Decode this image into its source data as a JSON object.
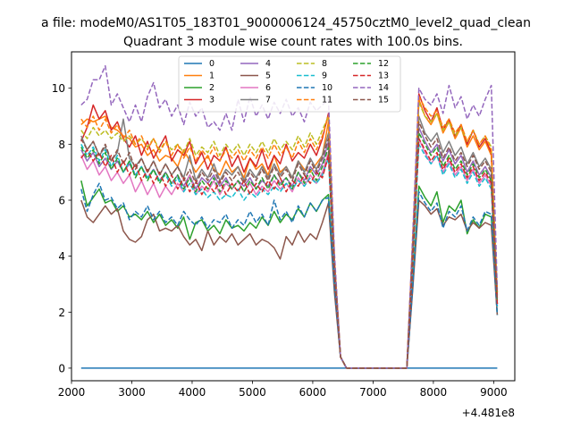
{
  "chart_data": {
    "type": "line",
    "suptitle": "a file: modeM0/AS1T05_183T01_9000006124_45750cztM0_level2_quad_clean",
    "title": "Quadrant 3 module wise count rates with 100.0s bins.",
    "xlabel": "",
    "ylabel": "",
    "offset_text": "+4.481e8",
    "xlim": [
      2000,
      9350
    ],
    "ylim": [
      -0.45,
      11.3
    ],
    "x_ticks": [
      2000,
      3000,
      4000,
      5000,
      6000,
      7000,
      8000,
      9000
    ],
    "y_ticks": [
      0,
      2,
      4,
      6,
      8,
      10
    ],
    "legend_position": "top-center",
    "legend_columns": 4,
    "grid": false,
    "x": [
      2160,
      2260,
      2360,
      2460,
      2560,
      2660,
      2760,
      2860,
      2960,
      3060,
      3160,
      3260,
      3360,
      3460,
      3560,
      3660,
      3760,
      3860,
      3960,
      4060,
      4160,
      4260,
      4360,
      4460,
      4560,
      4660,
      4760,
      4860,
      4960,
      5060,
      5160,
      5260,
      5360,
      5460,
      5560,
      5660,
      5760,
      5860,
      5960,
      6060,
      6160,
      6260,
      6360,
      6460,
      6560,
      6660,
      6760,
      6860,
      6960,
      7060,
      7160,
      7260,
      7360,
      7460,
      7560,
      7660,
      7760,
      7860,
      7960,
      8060,
      8160,
      8260,
      8360,
      8460,
      8560,
      8660,
      8760,
      8860,
      8960,
      9060
    ],
    "series": [
      {
        "name": "0",
        "color": "#1f77b4",
        "dash": "solid",
        "values": [
          0,
          0,
          0,
          0,
          0,
          0,
          0,
          0,
          0,
          0,
          0,
          0,
          0,
          0,
          0,
          0,
          0,
          0,
          0,
          0,
          0,
          0,
          0,
          0,
          0,
          0,
          0,
          0,
          0,
          0,
          0,
          0,
          0,
          0,
          0,
          0,
          0,
          0,
          0,
          0,
          0,
          0,
          0,
          0,
          0,
          0,
          0,
          0,
          0,
          0,
          0,
          0,
          0,
          0,
          0,
          0,
          0,
          0,
          0,
          0,
          0,
          0,
          0,
          0,
          0,
          0,
          0,
          0,
          0,
          0
        ]
      },
      {
        "name": "1",
        "color": "#ff7f0e",
        "dash": "solid",
        "values": [
          8.7,
          8.9,
          8.8,
          8.9,
          9.0,
          8.6,
          8.5,
          8.3,
          8.2,
          7.9,
          8.0,
          7.6,
          7.8,
          7.4,
          7.6,
          7.5,
          7.2,
          7.8,
          7.4,
          7.0,
          7.3,
          7.6,
          7.1,
          6.9,
          7.4,
          7.0,
          7.2,
          6.8,
          7.5,
          7.1,
          7.3,
          6.9,
          7.6,
          7.0,
          7.2,
          6.8,
          7.4,
          7.1,
          7.0,
          7.3,
          7.6,
          8.8,
          3.8,
          0.4,
          0,
          0,
          0,
          0,
          0,
          0,
          0,
          0,
          0,
          0,
          0,
          4.6,
          9.6,
          9.0,
          8.7,
          9.1,
          8.4,
          8.8,
          8.2,
          8.6,
          7.9,
          8.3,
          7.8,
          8.1,
          7.6,
          2.5
        ]
      },
      {
        "name": "2",
        "color": "#2ca02c",
        "dash": "solid",
        "values": [
          6.7,
          5.8,
          6.1,
          6.4,
          5.9,
          6.0,
          5.6,
          5.8,
          5.4,
          5.5,
          5.3,
          5.6,
          5.2,
          5.5,
          5.1,
          5.3,
          5.0,
          5.4,
          4.6,
          5.2,
          5.3,
          4.9,
          5.1,
          4.8,
          5.3,
          5.0,
          5.1,
          4.9,
          5.2,
          5.0,
          5.4,
          5.1,
          5.6,
          5.2,
          5.5,
          5.3,
          5.7,
          5.4,
          5.9,
          5.6,
          6.0,
          6.2,
          3.0,
          0.4,
          0,
          0,
          0,
          0,
          0,
          0,
          0,
          0,
          0,
          0,
          0,
          3.1,
          6.5,
          6.1,
          5.8,
          6.3,
          5.2,
          5.8,
          5.6,
          6.0,
          4.8,
          5.3,
          5.0,
          5.5,
          5.4,
          1.9
        ]
      },
      {
        "name": "3",
        "color": "#d62728",
        "dash": "solid",
        "values": [
          8.1,
          8.6,
          9.4,
          8.9,
          9.2,
          8.5,
          8.8,
          8.2,
          7.9,
          8.3,
          7.6,
          8.1,
          7.5,
          7.9,
          8.3,
          7.4,
          7.8,
          7.6,
          8.1,
          7.3,
          7.7,
          7.1,
          7.6,
          7.4,
          7.9,
          7.2,
          7.6,
          7.0,
          7.5,
          7.2,
          7.8,
          7.1,
          7.6,
          7.3,
          8.0,
          7.4,
          7.7,
          7.5,
          8.0,
          7.6,
          8.2,
          9.1,
          3.9,
          0.4,
          0,
          0,
          0,
          0,
          0,
          0,
          0,
          0,
          0,
          0,
          0,
          4.7,
          9.8,
          9.2,
          8.8,
          9.3,
          8.5,
          8.9,
          8.3,
          8.7,
          8.0,
          8.5,
          7.9,
          8.2,
          7.7,
          2.6
        ]
      },
      {
        "name": "4",
        "color": "#9467bd",
        "dash": "solid",
        "values": [
          7.8,
          7.4,
          7.7,
          7.2,
          7.5,
          7.1,
          7.4,
          7.0,
          7.3,
          6.9,
          7.2,
          6.8,
          7.1,
          6.7,
          7.0,
          6.6,
          6.9,
          6.5,
          6.9,
          6.4,
          6.8,
          6.6,
          6.9,
          6.5,
          6.8,
          6.4,
          6.7,
          6.5,
          6.8,
          6.4,
          6.7,
          6.5,
          6.9,
          6.6,
          6.8,
          6.5,
          7.0,
          6.7,
          7.2,
          6.9,
          7.3,
          8.1,
          3.5,
          0.4,
          0,
          0,
          0,
          0,
          0,
          0,
          0,
          0,
          0,
          0,
          0,
          4.2,
          8.6,
          8.1,
          7.7,
          8.0,
          7.4,
          7.8,
          7.3,
          7.6,
          7.0,
          7.4,
          6.9,
          7.2,
          6.8,
          2.3
        ]
      },
      {
        "name": "5",
        "color": "#8c564b",
        "dash": "solid",
        "values": [
          6.0,
          5.4,
          5.2,
          5.5,
          5.8,
          5.5,
          5.7,
          4.9,
          4.6,
          4.5,
          4.7,
          5.3,
          5.5,
          4.9,
          5.0,
          4.9,
          5.1,
          4.7,
          4.4,
          4.6,
          4.2,
          4.9,
          4.4,
          4.7,
          4.5,
          4.8,
          4.4,
          4.6,
          4.8,
          4.4,
          4.6,
          4.5,
          4.3,
          3.9,
          4.7,
          4.4,
          4.9,
          4.5,
          4.8,
          4.6,
          5.2,
          5.9,
          2.7,
          0.4,
          0,
          0,
          0,
          0,
          0,
          0,
          0,
          0,
          0,
          0,
          0,
          2.9,
          6.0,
          5.8,
          5.5,
          5.7,
          5.1,
          5.4,
          5.3,
          5.5,
          4.9,
          5.2,
          5.0,
          5.2,
          5.1,
          1.9
        ]
      },
      {
        "name": "6",
        "color": "#e377c2",
        "dash": "solid",
        "values": [
          7.6,
          7.1,
          7.4,
          6.9,
          7.2,
          6.7,
          7.0,
          6.6,
          6.9,
          6.3,
          6.7,
          6.2,
          6.6,
          6.1,
          6.5,
          6.2,
          6.6,
          6.3,
          6.9,
          6.2,
          6.5,
          6.3,
          6.7,
          6.2,
          6.6,
          6.4,
          6.7,
          6.3,
          6.6,
          6.2,
          6.5,
          6.3,
          6.7,
          6.4,
          6.6,
          6.3,
          6.8,
          6.5,
          6.9,
          6.6,
          7.0,
          7.7,
          3.4,
          0.4,
          0,
          0,
          0,
          0,
          0,
          0,
          0,
          0,
          0,
          0,
          0,
          4.0,
          8.2,
          7.7,
          7.3,
          7.6,
          7.0,
          7.4,
          6.9,
          7.2,
          6.7,
          7.1,
          6.6,
          6.9,
          6.5,
          2.2
        ]
      },
      {
        "name": "7",
        "color": "#7f7f7f",
        "dash": "solid",
        "values": [
          8.3,
          7.8,
          8.1,
          7.6,
          7.9,
          7.4,
          7.7,
          8.9,
          7.5,
          7.2,
          7.5,
          7.0,
          7.4,
          6.9,
          7.3,
          6.9,
          7.2,
          6.8,
          7.6,
          6.7,
          7.1,
          6.8,
          7.3,
          6.7,
          7.1,
          6.9,
          7.2,
          6.7,
          7.1,
          6.8,
          7.2,
          6.8,
          7.3,
          6.9,
          7.2,
          6.8,
          7.4,
          7.0,
          7.5,
          7.1,
          7.6,
          8.4,
          3.7,
          0.4,
          0,
          0,
          0,
          0,
          0,
          0,
          0,
          0,
          0,
          0,
          0,
          4.4,
          9.0,
          8.4,
          8.1,
          8.4,
          7.7,
          8.1,
          7.6,
          7.9,
          7.3,
          7.7,
          7.2,
          7.5,
          7.1,
          2.4
        ]
      },
      {
        "name": "8",
        "color": "#bcbd22",
        "dash": "dashed",
        "values": [
          8.5,
          8.2,
          8.6,
          8.3,
          8.5,
          8.2,
          8.4,
          8.1,
          8.3,
          8.0,
          8.2,
          7.9,
          8.2,
          7.8,
          8.1,
          7.8,
          8.0,
          7.7,
          8.2,
          7.6,
          7.9,
          7.7,
          8.1,
          7.6,
          8.0,
          7.7,
          8.0,
          7.6,
          8.0,
          7.7,
          8.1,
          7.7,
          8.2,
          7.8,
          8.1,
          7.8,
          8.3,
          7.9,
          8.4,
          8.0,
          8.5,
          9.0,
          3.9,
          0.4,
          0,
          0,
          0,
          0,
          0,
          0,
          0,
          0,
          0,
          0,
          0,
          4.6,
          9.5,
          9.0,
          8.8,
          9.1,
          8.5,
          8.8,
          8.3,
          8.6,
          8.1,
          8.5,
          8.0,
          8.3,
          7.9,
          2.7
        ]
      },
      {
        "name": "9",
        "color": "#17becf",
        "dash": "dashed",
        "values": [
          8.0,
          7.6,
          7.9,
          7.4,
          7.8,
          7.2,
          7.6,
          7.0,
          7.4,
          6.9,
          7.2,
          6.8,
          7.1,
          6.7,
          6.9,
          6.5,
          6.8,
          6.3,
          6.6,
          6.2,
          6.4,
          6.1,
          6.3,
          6.0,
          6.2,
          6.1,
          6.4,
          6.0,
          6.3,
          6.1,
          6.4,
          6.2,
          6.5,
          6.3,
          6.6,
          6.4,
          6.7,
          6.5,
          6.8,
          6.6,
          6.9,
          7.5,
          3.3,
          0.4,
          0,
          0,
          0,
          0,
          0,
          0,
          0,
          0,
          0,
          0,
          0,
          3.8,
          8.0,
          7.6,
          7.3,
          7.6,
          6.9,
          7.3,
          6.8,
          7.1,
          6.6,
          7.0,
          6.5,
          6.8,
          6.4,
          2.2
        ]
      },
      {
        "name": "10",
        "color": "#1f77b4",
        "dash": "dashed",
        "values": [
          6.4,
          5.6,
          6.2,
          6.6,
          6.0,
          6.1,
          5.7,
          5.9,
          5.3,
          5.6,
          5.4,
          5.8,
          5.3,
          5.6,
          5.2,
          5.4,
          5.1,
          5.6,
          5.3,
          5.1,
          5.4,
          5.0,
          5.3,
          5.2,
          5.5,
          5.0,
          5.3,
          5.1,
          5.6,
          5.2,
          5.5,
          5.1,
          6.0,
          5.3,
          5.6,
          5.2,
          5.8,
          5.4,
          5.9,
          5.6,
          6.0,
          6.1,
          2.9,
          0.4,
          0,
          0,
          0,
          0,
          0,
          0,
          0,
          0,
          0,
          0,
          0,
          3.0,
          6.3,
          5.9,
          5.6,
          5.9,
          5.0,
          5.6,
          5.4,
          5.8,
          4.9,
          5.4,
          5.1,
          5.6,
          5.5,
          1.9
        ]
      },
      {
        "name": "11",
        "color": "#ff7f0e",
        "dash": "dashed",
        "values": [
          8.9,
          8.6,
          9.0,
          8.5,
          8.9,
          8.4,
          8.7,
          8.2,
          8.5,
          8.0,
          8.3,
          7.8,
          8.2,
          7.7,
          8.1,
          7.6,
          8.0,
          7.5,
          7.9,
          7.4,
          7.8,
          7.5,
          7.9,
          7.4,
          7.8,
          7.5,
          7.8,
          7.4,
          7.8,
          7.5,
          7.9,
          7.5,
          8.0,
          7.6,
          7.9,
          7.5,
          8.1,
          7.7,
          8.2,
          7.8,
          8.3,
          9.0,
          3.9,
          0.4,
          0,
          0,
          0,
          0,
          0,
          0,
          0,
          0,
          0,
          0,
          0,
          4.7,
          9.7,
          9.3,
          9.0,
          9.2,
          8.6,
          8.9,
          8.4,
          8.7,
          8.1,
          8.5,
          8.0,
          8.3,
          7.8,
          2.7
        ]
      },
      {
        "name": "12",
        "color": "#2ca02c",
        "dash": "dashed",
        "values": [
          7.9,
          7.5,
          7.8,
          7.3,
          7.7,
          7.1,
          7.5,
          7.0,
          7.4,
          6.8,
          7.2,
          6.7,
          7.1,
          6.6,
          7.0,
          6.6,
          6.9,
          6.4,
          6.8,
          6.3,
          6.7,
          6.4,
          6.8,
          6.3,
          6.7,
          6.4,
          6.7,
          6.3,
          6.7,
          6.4,
          6.8,
          6.4,
          6.9,
          6.5,
          6.8,
          6.4,
          7.0,
          6.6,
          7.1,
          6.7,
          7.2,
          7.9,
          3.5,
          0.4,
          0,
          0,
          0,
          0,
          0,
          0,
          0,
          0,
          0,
          0,
          0,
          4.1,
          8.4,
          8.0,
          7.6,
          7.9,
          7.2,
          7.6,
          7.1,
          7.4,
          6.9,
          7.3,
          6.8,
          7.1,
          6.7,
          2.3
        ]
      },
      {
        "name": "13",
        "color": "#d62728",
        "dash": "dashed",
        "values": [
          7.5,
          7.8,
          7.4,
          7.7,
          7.2,
          7.6,
          7.0,
          7.4,
          6.9,
          7.3,
          6.7,
          7.1,
          6.6,
          7.0,
          6.5,
          6.9,
          6.4,
          6.8,
          6.3,
          6.7,
          6.2,
          6.6,
          6.3,
          6.7,
          6.2,
          6.6,
          6.3,
          6.7,
          6.2,
          6.6,
          6.3,
          6.7,
          6.4,
          6.8,
          6.3,
          6.7,
          6.5,
          6.9,
          6.6,
          7.0,
          6.8,
          7.6,
          3.4,
          0.4,
          0,
          0,
          0,
          0,
          0,
          0,
          0,
          0,
          0,
          0,
          0,
          3.9,
          8.2,
          7.8,
          7.4,
          7.7,
          7.1,
          7.5,
          7.0,
          7.3,
          6.8,
          7.2,
          6.7,
          7.0,
          6.6,
          2.3
        ]
      },
      {
        "name": "14",
        "color": "#9467bd",
        "dash": "dashed",
        "values": [
          9.4,
          9.6,
          10.3,
          10.3,
          10.8,
          9.4,
          9.8,
          9.3,
          8.8,
          9.4,
          8.8,
          9.7,
          10.2,
          9.3,
          9.6,
          9.0,
          9.4,
          8.7,
          9.5,
          9.0,
          9.3,
          8.6,
          8.8,
          8.5,
          9.1,
          8.5,
          9.6,
          8.8,
          9.7,
          9.0,
          9.4,
          8.9,
          9.5,
          9.1,
          9.6,
          9.0,
          9.3,
          8.8,
          9.5,
          9.2,
          9.4,
          9.6,
          4.1,
          0.4,
          0,
          0,
          0,
          0,
          0,
          0,
          0,
          0,
          0,
          0,
          0,
          4.9,
          10.0,
          9.6,
          9.4,
          9.8,
          9.1,
          10.1,
          9.3,
          9.7,
          8.9,
          9.4,
          9.0,
          9.6,
          10.1,
          2.8
        ]
      },
      {
        "name": "15",
        "color": "#8c564b",
        "dash": "dashed",
        "values": [
          8.2,
          7.8,
          8.1,
          7.6,
          8.0,
          7.4,
          7.8,
          7.3,
          7.7,
          7.1,
          7.5,
          7.0,
          7.4,
          6.9,
          7.3,
          6.9,
          7.2,
          6.7,
          7.1,
          6.6,
          7.0,
          6.7,
          7.1,
          6.6,
          7.0,
          6.7,
          7.0,
          6.6,
          7.0,
          6.7,
          7.1,
          6.7,
          7.2,
          6.8,
          7.1,
          6.7,
          7.3,
          6.9,
          7.4,
          7.0,
          7.5,
          8.2,
          3.6,
          0.4,
          0,
          0,
          0,
          0,
          0,
          0,
          0,
          0,
          0,
          0,
          0,
          4.3,
          8.8,
          8.3,
          7.9,
          8.2,
          7.5,
          7.9,
          7.4,
          7.7,
          7.2,
          7.6,
          7.1,
          7.4,
          7.0,
          2.4
        ]
      }
    ]
  }
}
